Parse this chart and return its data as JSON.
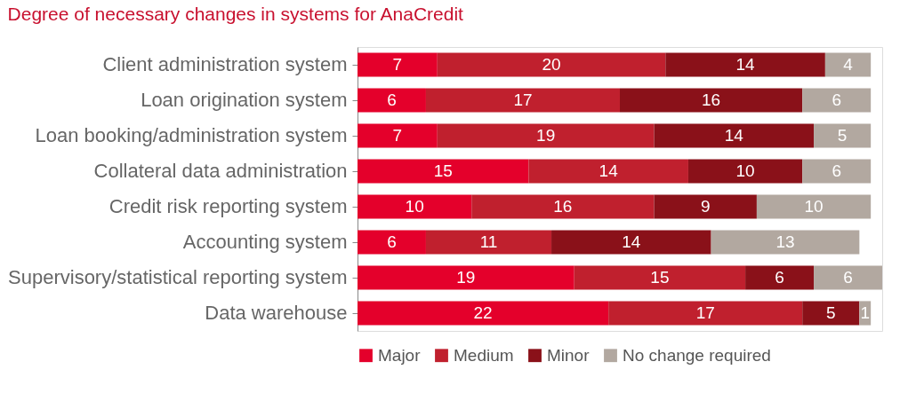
{
  "chart_data": {
    "type": "bar",
    "orientation": "horizontal",
    "stacked": true,
    "data_labels": true,
    "legend": "bottom",
    "title": "Degree of necessary changes in systems for AnaCredit",
    "categories": [
      "Client administration system",
      "Loan origination system",
      "Loan booking/administration system",
      "Collateral data administration",
      "Credit risk reporting system",
      "Accounting system",
      "Supervisory/statistical reporting system",
      "Data warehouse"
    ],
    "series": [
      {
        "name": "Major",
        "color": "#e4002b",
        "values": [
          7,
          6,
          7,
          15,
          10,
          6,
          19,
          22
        ]
      },
      {
        "name": "Medium",
        "color": "#c0202e",
        "values": [
          20,
          17,
          19,
          14,
          16,
          11,
          15,
          17
        ]
      },
      {
        "name": "Minor",
        "color": "#8a1119",
        "values": [
          14,
          16,
          14,
          10,
          9,
          14,
          6,
          5
        ]
      },
      {
        "name": "No change required",
        "color": "#b2a8a0",
        "values": [
          4,
          6,
          5,
          6,
          10,
          13,
          6,
          1
        ]
      }
    ]
  }
}
